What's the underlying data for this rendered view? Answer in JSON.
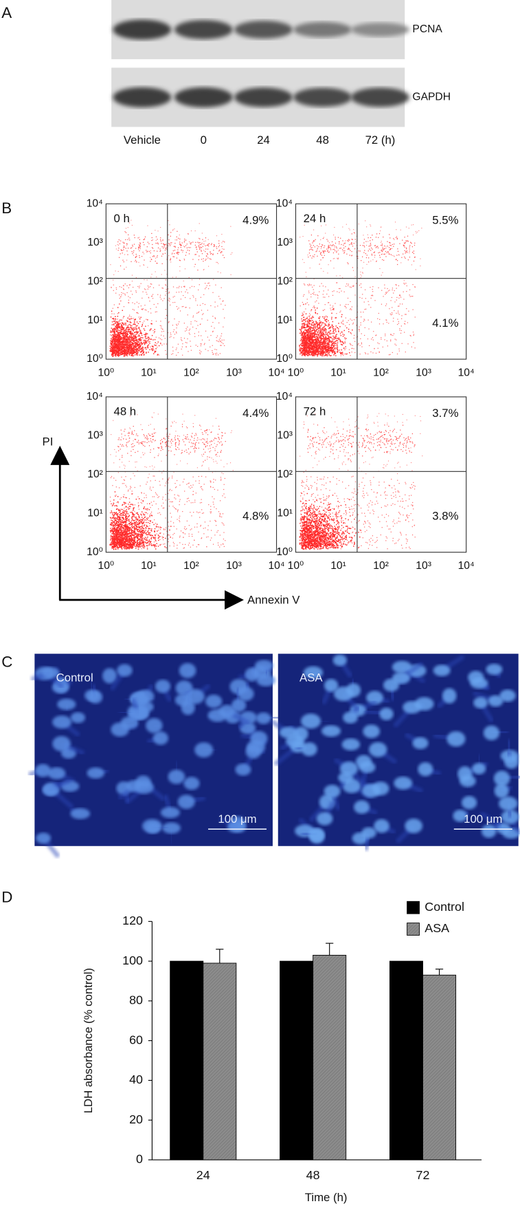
{
  "panel_a": {
    "label": "A",
    "bands": [
      "PCNA",
      "GAPDH"
    ],
    "lanes": [
      "Vehicle",
      "0",
      "24",
      "48",
      "72 (h)"
    ]
  },
  "panel_b": {
    "label": "B",
    "ticks": [
      "10⁰",
      "10¹",
      "10²",
      "10³",
      "10⁴"
    ],
    "y_axis_label": "PI",
    "x_axis_label": "Annexin V",
    "plots": [
      {
        "title": "0 h",
        "upper_right": "4.9%"
      },
      {
        "title": "24 h",
        "upper_right": "5.5%",
        "lower_right": "4.1%"
      },
      {
        "title": "48 h",
        "upper_right": "4.4%",
        "lower_right": "4.8%"
      },
      {
        "title": "72 h",
        "upper_right": "3.7%",
        "lower_right": "3.8%"
      }
    ]
  },
  "panel_c": {
    "label": "C",
    "images": [
      {
        "caption": "Control",
        "scale_bar": "100 μm"
      },
      {
        "caption": "ASA",
        "scale_bar": "100 μm"
      }
    ]
  },
  "panel_d_label": "D",
  "chart_data": {
    "type": "bar",
    "x_label": "Time (h)",
    "y_label": "LDH absorbance (% control)",
    "categories": [
      "24",
      "48",
      "72"
    ],
    "series": [
      {
        "name": "Control",
        "color": "#000000",
        "values": [
          100,
          100,
          100
        ]
      },
      {
        "name": "ASA",
        "color": "#8c8c8c",
        "values": [
          99,
          103,
          93
        ],
        "errors": [
          7,
          6,
          3
        ]
      }
    ],
    "ylim": [
      0,
      120
    ],
    "yticks": [
      0,
      20,
      40,
      60,
      80,
      100,
      120
    ],
    "legend": "top-right"
  }
}
